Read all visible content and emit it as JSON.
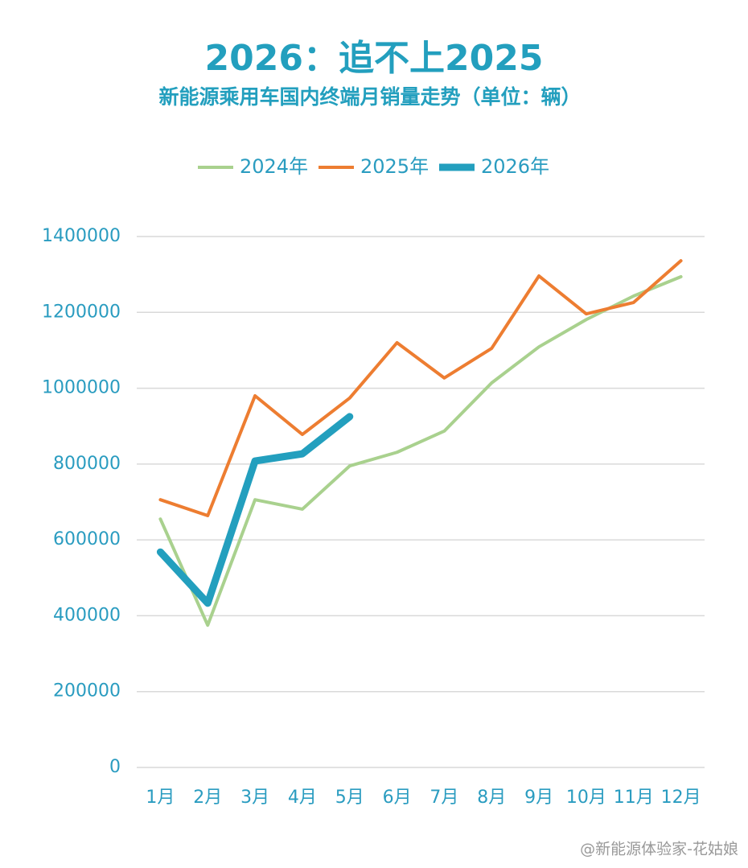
{
  "chart_data": {
    "type": "line",
    "title": "2026：追不上2025",
    "subtitle": "新能源乘用车国内终端月销量走势（单位：辆）",
    "categories": [
      "1月",
      "2月",
      "3月",
      "4月",
      "5月",
      "6月",
      "7月",
      "8月",
      "9月",
      "10月",
      "11月",
      "12月"
    ],
    "series": [
      {
        "name": "2024年",
        "color": "#a9d18e",
        "values": [
          655000,
          375000,
          706000,
          681000,
          795000,
          831000,
          887000,
          1014000,
          1109000,
          1181000,
          1243000,
          1294000
        ]
      },
      {
        "name": "2025年",
        "color": "#ed7d31",
        "values": [
          706000,
          664000,
          980000,
          878000,
          974000,
          1120000,
          1027000,
          1105000,
          1296000,
          1196000,
          1226000,
          1336000
        ]
      },
      {
        "name": "2026年",
        "color": "#239fbe",
        "values": [
          568000,
          433000,
          808000,
          827000,
          925000,
          null,
          null,
          null,
          null,
          null,
          null,
          null
        ]
      }
    ],
    "ylim": [
      0,
      1400000
    ],
    "yticks": [
      0,
      200000,
      400000,
      600000,
      800000,
      1000000,
      1200000,
      1400000
    ],
    "grid": true,
    "legend": "top",
    "watermark": "@新能源体验家-花姑娘"
  }
}
